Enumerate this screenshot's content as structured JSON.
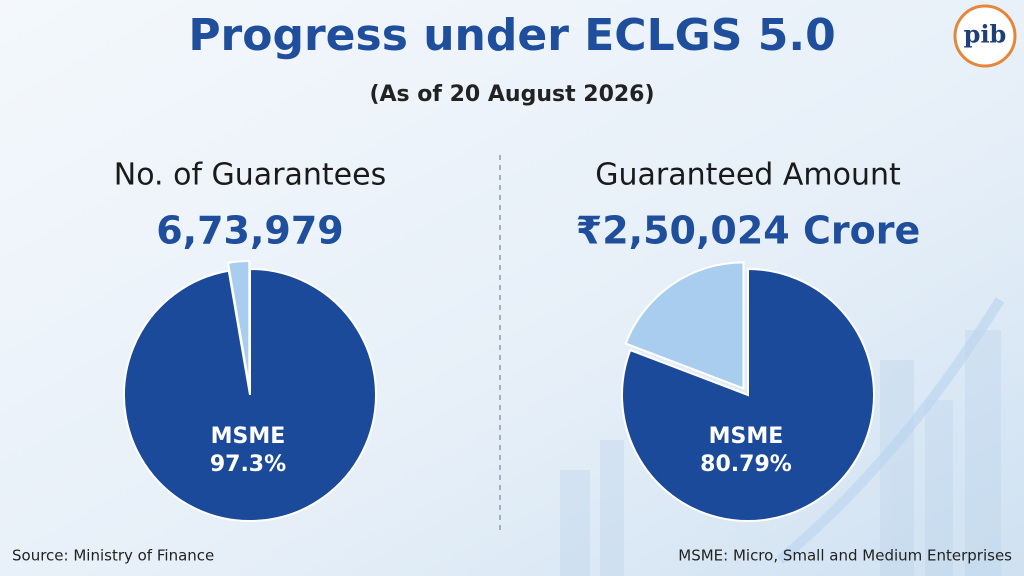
{
  "title": "Progress under ECLGS 5.0",
  "subtitle": "(As of 20 August 2026)",
  "logo": "pib",
  "chart_data": [
    {
      "type": "pie",
      "title": "No. of Guarantees",
      "subtitle": "6,73,979",
      "categories": [
        "MSME",
        null
      ],
      "values": [
        97.3,
        2.7
      ],
      "value_labels": [
        "97.3%",
        null
      ],
      "colors": [
        "#1b4a9b",
        "#a8cdee"
      ]
    },
    {
      "type": "pie",
      "title": "Guaranteed Amount",
      "subtitle": "₹2,50,024 Crore",
      "categories": [
        "MSME",
        null
      ],
      "values": [
        80.79,
        19.21
      ],
      "value_labels": [
        "80.79%",
        null
      ],
      "colors": [
        "#1b4a9b",
        "#a8cdee"
      ]
    }
  ],
  "source": "Source: Ministry of Finance",
  "note": "MSME: Micro, Small and Medium Enterprises"
}
